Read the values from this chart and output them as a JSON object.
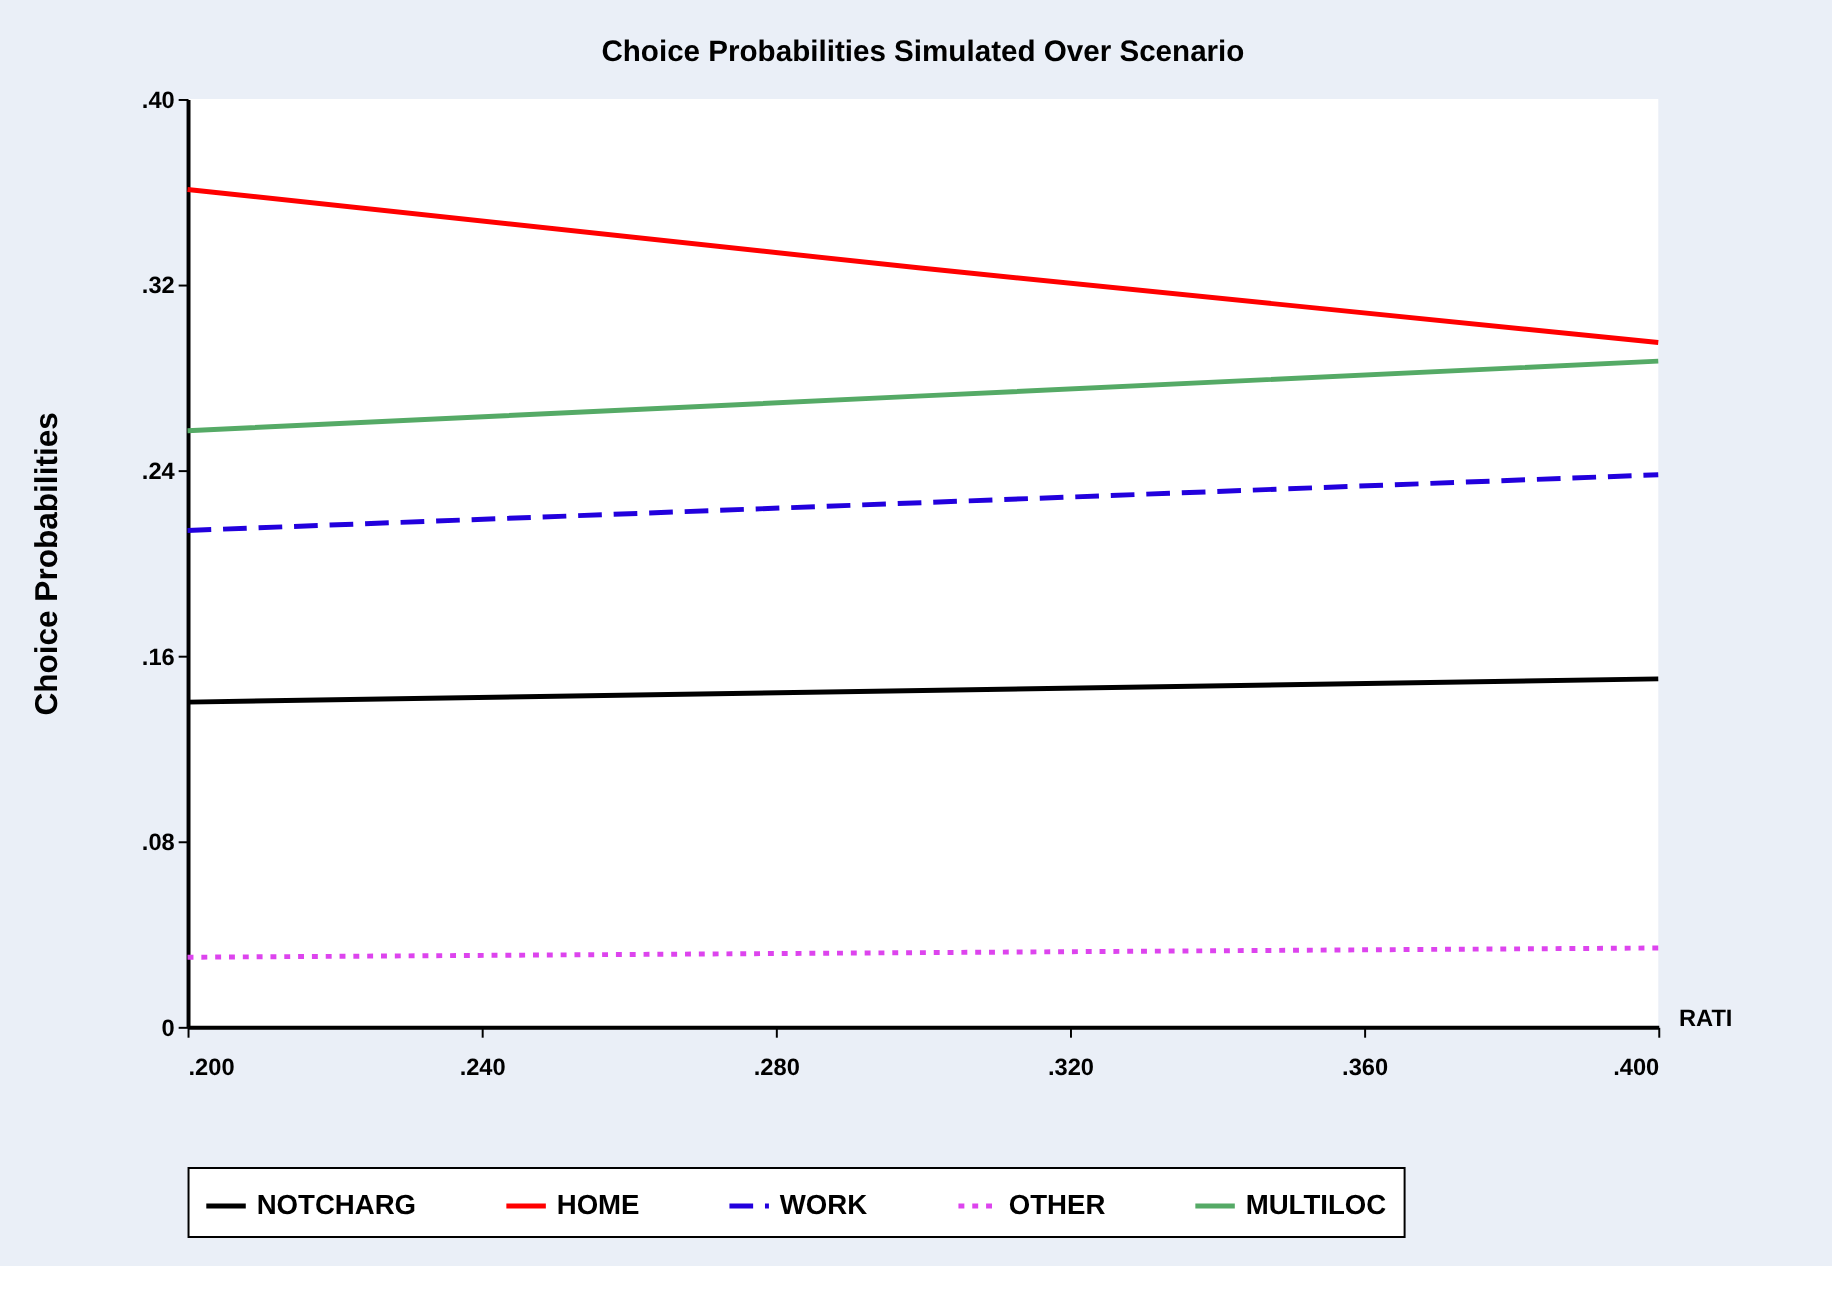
{
  "chart_data": {
    "type": "line",
    "title": "Choice Probabilities Simulated Over Scenario",
    "xlabel": "RATI",
    "ylabel": "Choice Probabilities",
    "x": [
      0.2,
      0.3,
      0.4
    ],
    "series": [
      {
        "name": "NOTCHARG",
        "color": "#000000",
        "line_style": "solid",
        "values": [
          0.14,
          0.145,
          0.15
        ]
      },
      {
        "name": "HOME",
        "color": "#ff0000",
        "line_style": "solid",
        "values": [
          0.361,
          0.327,
          0.295
        ]
      },
      {
        "name": "WORK",
        "color": "#2200dd",
        "line_style": "dashed",
        "values": [
          0.214,
          0.226,
          0.238
        ]
      },
      {
        "name": "OTHER",
        "color": "#dd44ee",
        "line_style": "dotted",
        "values": [
          0.03,
          0.032,
          0.034
        ]
      },
      {
        "name": "MULTILOC",
        "color": "#55aa66",
        "line_style": "solid",
        "values": [
          0.257,
          0.272,
          0.287
        ]
      }
    ],
    "xlim": [
      0.2,
      0.4
    ],
    "ylim": [
      0,
      0.4
    ],
    "xticks": [
      {
        "value": 0.2,
        "label": ".200"
      },
      {
        "value": 0.24,
        "label": ".240"
      },
      {
        "value": 0.28,
        "label": ".280"
      },
      {
        "value": 0.32,
        "label": ".320"
      },
      {
        "value": 0.36,
        "label": ".360"
      },
      {
        "value": 0.4,
        "label": ".400"
      }
    ],
    "yticks": [
      0,
      {
        "value": 0.08,
        "label": ".08"
      },
      {
        "value": 0.16,
        "label": ".16"
      },
      {
        "value": 0.24,
        "label": ".24"
      },
      {
        "value": 0.32,
        "label": ".32"
      },
      {
        "value": 0.4,
        "label": ".40"
      }
    ],
    "grid": false,
    "legend": "bottom",
    "marker": "none"
  }
}
